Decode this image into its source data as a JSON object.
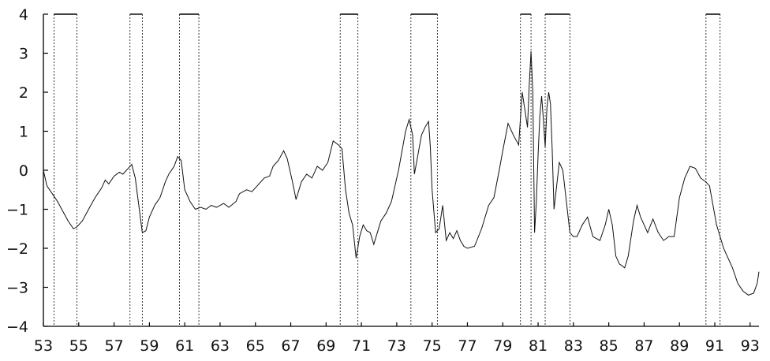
{
  "chart_data": {
    "type": "line",
    "title": "",
    "xlabel": "",
    "ylabel": "",
    "xlim": [
      1953,
      1993.5
    ],
    "ylim": [
      -4,
      4
    ],
    "x_ticks": [
      53,
      55,
      57,
      59,
      61,
      63,
      65,
      67,
      69,
      71,
      73,
      75,
      77,
      79,
      81,
      83,
      85,
      87,
      89,
      91,
      93
    ],
    "y_ticks": [
      4,
      3,
      2,
      1,
      0,
      -1,
      -2,
      -3,
      -4
    ],
    "grid": false,
    "recession_periods": [
      [
        1953.6,
        1954.9
      ],
      [
        1957.9,
        1958.6
      ],
      [
        1960.7,
        1961.8
      ],
      [
        1969.8,
        1970.8
      ],
      [
        1973.8,
        1975.3
      ],
      [
        1980.0,
        1980.6
      ],
      [
        1981.4,
        1982.8
      ],
      [
        1990.5,
        1991.3
      ]
    ],
    "series": [
      {
        "points": [
          [
            1953.0,
            0.0
          ],
          [
            1953.2,
            -0.4
          ],
          [
            1953.5,
            -0.6
          ],
          [
            1953.8,
            -0.8
          ],
          [
            1954.1,
            -1.05
          ],
          [
            1954.4,
            -1.3
          ],
          [
            1954.7,
            -1.5
          ],
          [
            1954.9,
            -1.45
          ],
          [
            1955.2,
            -1.3
          ],
          [
            1955.5,
            -1.05
          ],
          [
            1955.8,
            -0.8
          ],
          [
            1956.0,
            -0.65
          ],
          [
            1956.3,
            -0.45
          ],
          [
            1956.5,
            -0.25
          ],
          [
            1956.7,
            -0.35
          ],
          [
            1957.0,
            -0.15
          ],
          [
            1957.3,
            -0.05
          ],
          [
            1957.5,
            -0.1
          ],
          [
            1957.8,
            0.05
          ],
          [
            1958.0,
            0.15
          ],
          [
            1958.2,
            -0.2
          ],
          [
            1958.4,
            -0.9
          ],
          [
            1958.6,
            -1.6
          ],
          [
            1958.8,
            -1.55
          ],
          [
            1959.0,
            -1.2
          ],
          [
            1959.3,
            -0.9
          ],
          [
            1959.6,
            -0.7
          ],
          [
            1959.9,
            -0.3
          ],
          [
            1960.1,
            -0.1
          ],
          [
            1960.4,
            0.1
          ],
          [
            1960.6,
            0.35
          ],
          [
            1960.8,
            0.25
          ],
          [
            1961.0,
            -0.5
          ],
          [
            1961.3,
            -0.8
          ],
          [
            1961.6,
            -1.0
          ],
          [
            1961.9,
            -0.95
          ],
          [
            1962.2,
            -1.0
          ],
          [
            1962.5,
            -0.9
          ],
          [
            1962.8,
            -0.95
          ],
          [
            1963.2,
            -0.85
          ],
          [
            1963.5,
            -0.95
          ],
          [
            1963.9,
            -0.8
          ],
          [
            1964.1,
            -0.6
          ],
          [
            1964.5,
            -0.5
          ],
          [
            1964.8,
            -0.55
          ],
          [
            1965.1,
            -0.4
          ],
          [
            1965.5,
            -0.2
          ],
          [
            1965.8,
            -0.15
          ],
          [
            1966.0,
            0.1
          ],
          [
            1966.3,
            0.25
          ],
          [
            1966.6,
            0.5
          ],
          [
            1966.8,
            0.3
          ],
          [
            1967.1,
            -0.3
          ],
          [
            1967.3,
            -0.75
          ],
          [
            1967.6,
            -0.3
          ],
          [
            1967.9,
            -0.1
          ],
          [
            1968.2,
            -0.2
          ],
          [
            1968.5,
            0.1
          ],
          [
            1968.8,
            0.0
          ],
          [
            1969.1,
            0.2
          ],
          [
            1969.4,
            0.75
          ],
          [
            1969.7,
            0.65
          ],
          [
            1969.9,
            0.55
          ],
          [
            1970.1,
            -0.5
          ],
          [
            1970.3,
            -1.1
          ],
          [
            1970.5,
            -1.4
          ],
          [
            1970.7,
            -2.25
          ],
          [
            1970.9,
            -1.7
          ],
          [
            1971.1,
            -1.4
          ],
          [
            1971.3,
            -1.55
          ],
          [
            1971.5,
            -1.6
          ],
          [
            1971.7,
            -1.9
          ],
          [
            1971.9,
            -1.6
          ],
          [
            1972.1,
            -1.3
          ],
          [
            1972.4,
            -1.1
          ],
          [
            1972.7,
            -0.8
          ],
          [
            1972.9,
            -0.4
          ],
          [
            1973.1,
            0.0
          ],
          [
            1973.3,
            0.5
          ],
          [
            1973.5,
            1.0
          ],
          [
            1973.7,
            1.3
          ],
          [
            1973.9,
            0.9
          ],
          [
            1974.0,
            -0.1
          ],
          [
            1974.2,
            0.4
          ],
          [
            1974.4,
            0.9
          ],
          [
            1974.6,
            1.1
          ],
          [
            1974.8,
            1.25
          ],
          [
            1974.9,
            0.6
          ],
          [
            1975.0,
            -0.5
          ],
          [
            1975.2,
            -1.6
          ],
          [
            1975.4,
            -1.5
          ],
          [
            1975.6,
            -0.9
          ],
          [
            1975.8,
            -1.8
          ],
          [
            1976.0,
            -1.6
          ],
          [
            1976.2,
            -1.75
          ],
          [
            1976.4,
            -1.55
          ],
          [
            1976.6,
            -1.8
          ],
          [
            1976.8,
            -1.95
          ],
          [
            1977.0,
            -2.0
          ],
          [
            1977.4,
            -1.95
          ],
          [
            1977.8,
            -1.5
          ],
          [
            1978.2,
            -0.9
          ],
          [
            1978.5,
            -0.7
          ],
          [
            1978.8,
            0.0
          ],
          [
            1979.0,
            0.5
          ],
          [
            1979.3,
            1.2
          ],
          [
            1979.6,
            0.9
          ],
          [
            1979.9,
            0.65
          ],
          [
            1980.1,
            2.0
          ],
          [
            1980.3,
            1.4
          ],
          [
            1980.4,
            1.1
          ],
          [
            1980.5,
            2.2
          ],
          [
            1980.6,
            3.05
          ],
          [
            1980.7,
            2.0
          ],
          [
            1980.8,
            -1.6
          ],
          [
            1980.9,
            -0.8
          ],
          [
            1981.0,
            0.4
          ],
          [
            1981.1,
            1.4
          ],
          [
            1981.2,
            1.9
          ],
          [
            1981.3,
            1.3
          ],
          [
            1981.4,
            0.6
          ],
          [
            1981.5,
            1.6
          ],
          [
            1981.6,
            2.0
          ],
          [
            1981.7,
            1.7
          ],
          [
            1981.8,
            0.5
          ],
          [
            1981.9,
            -1.0
          ],
          [
            1982.0,
            -0.6
          ],
          [
            1982.2,
            0.2
          ],
          [
            1982.4,
            0.0
          ],
          [
            1982.6,
            -0.8
          ],
          [
            1982.8,
            -1.6
          ],
          [
            1983.0,
            -1.7
          ],
          [
            1983.2,
            -1.7
          ],
          [
            1983.5,
            -1.4
          ],
          [
            1983.8,
            -1.2
          ],
          [
            1984.1,
            -1.7
          ],
          [
            1984.5,
            -1.8
          ],
          [
            1984.8,
            -1.4
          ],
          [
            1985.0,
            -1.0
          ],
          [
            1985.2,
            -1.4
          ],
          [
            1985.4,
            -2.2
          ],
          [
            1985.6,
            -2.4
          ],
          [
            1985.9,
            -2.5
          ],
          [
            1986.1,
            -2.2
          ],
          [
            1986.4,
            -1.3
          ],
          [
            1986.6,
            -0.9
          ],
          [
            1986.8,
            -1.2
          ],
          [
            1987.0,
            -1.4
          ],
          [
            1987.2,
            -1.6
          ],
          [
            1987.5,
            -1.25
          ],
          [
            1987.8,
            -1.6
          ],
          [
            1988.1,
            -1.8
          ],
          [
            1988.4,
            -1.7
          ],
          [
            1988.7,
            -1.7
          ],
          [
            1989.0,
            -0.7
          ],
          [
            1989.3,
            -0.2
          ],
          [
            1989.6,
            0.1
          ],
          [
            1989.9,
            0.05
          ],
          [
            1990.2,
            -0.2
          ],
          [
            1990.5,
            -0.3
          ],
          [
            1990.7,
            -0.4
          ],
          [
            1990.9,
            -0.9
          ],
          [
            1991.1,
            -1.4
          ],
          [
            1991.3,
            -1.7
          ],
          [
            1991.5,
            -2.0
          ],
          [
            1991.7,
            -2.2
          ],
          [
            1992.0,
            -2.5
          ],
          [
            1992.3,
            -2.9
          ],
          [
            1992.6,
            -3.1
          ],
          [
            1992.9,
            -3.2
          ],
          [
            1993.2,
            -3.15
          ],
          [
            1993.4,
            -2.9
          ],
          [
            1993.5,
            -2.6
          ]
        ]
      }
    ]
  }
}
